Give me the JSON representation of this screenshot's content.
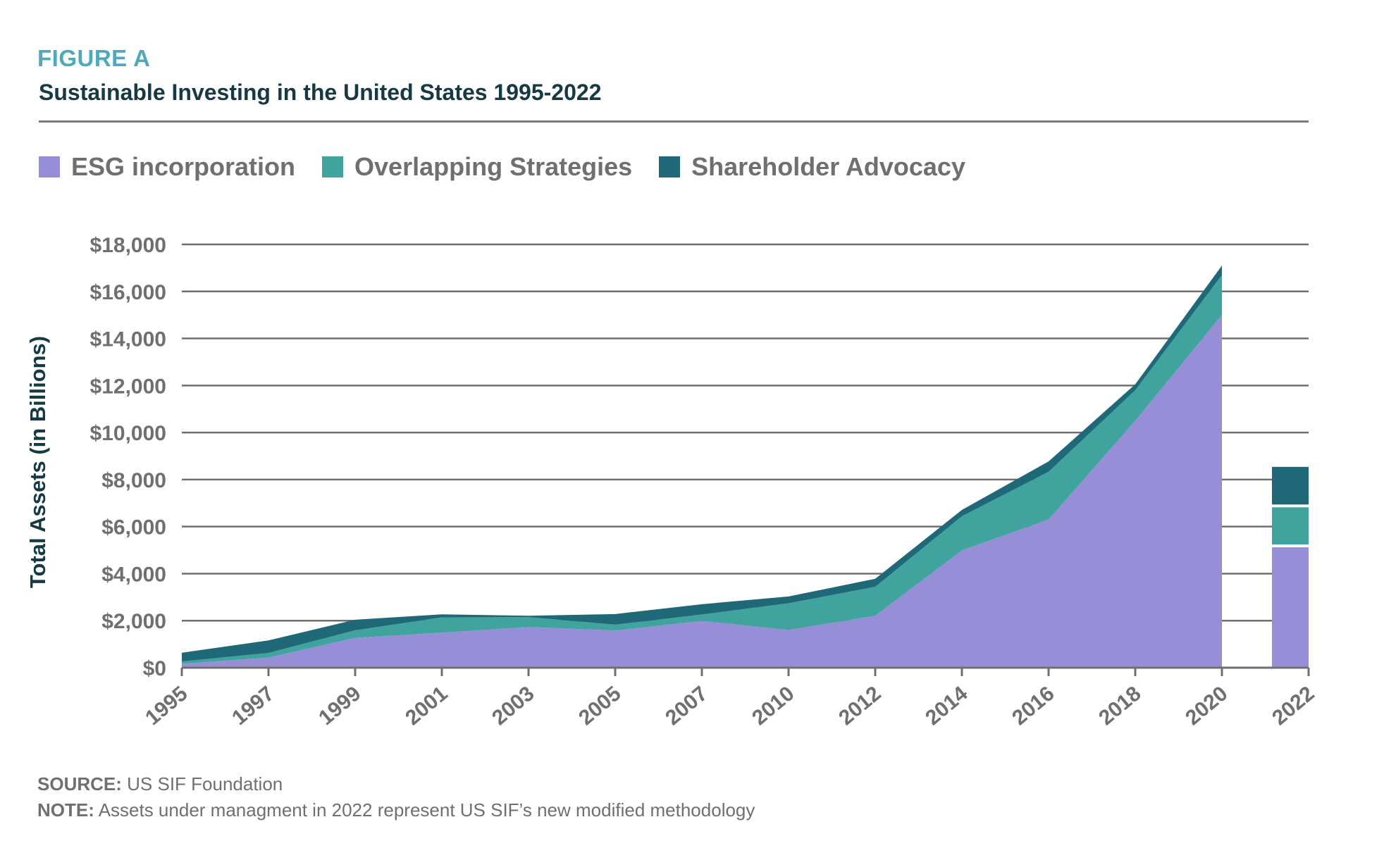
{
  "figure": {
    "label": "FIGURE A",
    "title": "Sustainable Investing in the United States 1995-2022"
  },
  "legend": [
    {
      "name": "ESG incorporation",
      "color": "#968fd7"
    },
    {
      "name": "Overlapping Strategies",
      "color": "#41a39e"
    },
    {
      "name": "Shareholder Advocacy",
      "color": "#1f6877"
    }
  ],
  "footer": {
    "source_label": "SOURCE:",
    "source_text": "US SIF Foundation",
    "note_label": "NOTE:",
    "note_text": "Assets under managment in 2022 represent US SIF’s new modified methodology"
  },
  "chart_data": {
    "type": "area",
    "stacked": true,
    "ylabel": "Total Assets (in Billions)",
    "ylim": [
      0,
      18000
    ],
    "yticks": [
      0,
      2000,
      4000,
      6000,
      8000,
      10000,
      12000,
      14000,
      16000,
      18000
    ],
    "ytick_labels": [
      "$0",
      "$2,000",
      "$4,000",
      "$6,000",
      "$8,000",
      "$10,000",
      "$12,000",
      "$14,000",
      "$16,000",
      "$18,000"
    ],
    "categories": [
      "1995",
      "1997",
      "1999",
      "2001",
      "2003",
      "2005",
      "2007",
      "2010",
      "2012",
      "2014",
      "2016",
      "2018",
      "2020",
      "2022"
    ],
    "grid": true,
    "series": [
      {
        "name": "ESG incorporation",
        "color": "#968fd7",
        "values": [
          166,
          430,
          1270,
          1490,
          1730,
          1580,
          1990,
          1600,
          2210,
          4990,
          6300,
          10500,
          15000,
          5180
        ]
      },
      {
        "name": "Overlapping Strategies",
        "color": "#41a39e",
        "values": [
          100,
          200,
          320,
          650,
          420,
          250,
          270,
          1140,
          1230,
          1450,
          2030,
          1300,
          1700,
          1700
        ]
      },
      {
        "name": "Shareholder Advocacy",
        "color": "#1f6877",
        "values": [
          370,
          530,
          450,
          130,
          60,
          450,
          440,
          290,
          340,
          270,
          440,
          250,
          400,
          1720
        ]
      }
    ],
    "notes": {
      "2022": "shown as a separate stacked bar"
    }
  }
}
